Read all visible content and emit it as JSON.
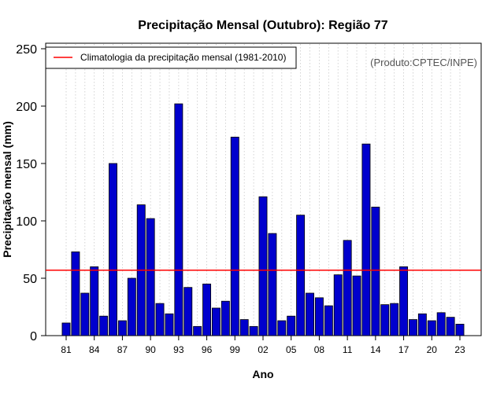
{
  "chart_data": {
    "type": "bar",
    "title": "Precipitação Mensal (Outubro): Região 77",
    "xlabel": "Ano",
    "ylabel": "Precipitação mensal (mm)",
    "ylim": [
      0,
      250
    ],
    "yticks": [
      0,
      50,
      100,
      150,
      200,
      250
    ],
    "categories": [
      "81",
      "82",
      "83",
      "84",
      "85",
      "86",
      "87",
      "88",
      "89",
      "90",
      "91",
      "92",
      "93",
      "94",
      "95",
      "96",
      "97",
      "98",
      "99",
      "00",
      "01",
      "02",
      "03",
      "04",
      "05",
      "06",
      "07",
      "08",
      "09",
      "10",
      "11",
      "12",
      "13",
      "14",
      "15",
      "16",
      "17",
      "18",
      "19",
      "20",
      "21",
      "22",
      "23"
    ],
    "xtick_labels": [
      "81",
      "84",
      "87",
      "90",
      "93",
      "96",
      "99",
      "02",
      "05",
      "08",
      "11",
      "14",
      "17",
      "20",
      "23"
    ],
    "values": [
      11,
      73,
      37,
      60,
      17,
      150,
      13,
      50,
      114,
      102,
      28,
      19,
      202,
      42,
      8,
      45,
      24,
      30,
      173,
      14,
      8,
      121,
      89,
      13,
      17,
      105,
      37,
      33,
      26,
      53,
      83,
      52,
      167,
      112,
      27,
      28,
      60,
      14,
      19,
      13,
      20,
      16,
      10
    ],
    "bar_color": "#0000CD",
    "reference_line": {
      "value": 57,
      "label": "Climatologia da precipitação mensal (1981-2010)",
      "color": "#FF0000"
    },
    "legend_position": "top-left",
    "grid": "vertical-dotted",
    "annotation": "(Produto:CPTEC/INPE)"
  }
}
